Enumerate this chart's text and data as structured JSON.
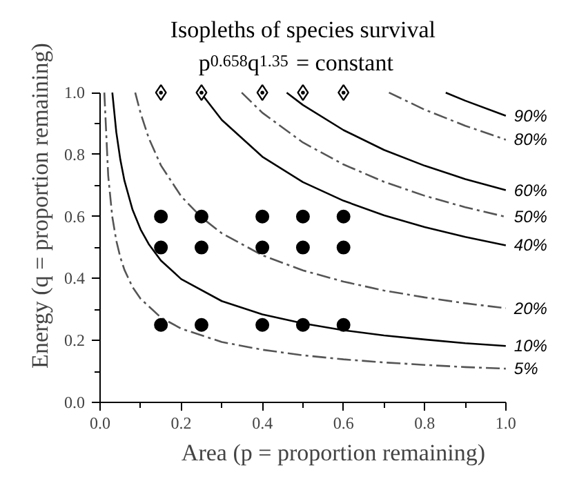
{
  "chart_data": {
    "type": "line",
    "title": "Isopleths of species survival",
    "subtitle": "p$^{0.658}$q$^{1.35}$ = constant",
    "xlabel": "Area (p = proportion remaining)",
    "ylabel": "Energy (q = proportion remaining)",
    "xlim": [
      0,
      1
    ],
    "ylim": [
      0,
      1
    ],
    "xticks": [
      {
        "value": 0,
        "label": "0.0"
      },
      {
        "value": 0.2,
        "label": "0.2"
      },
      {
        "value": 0.4,
        "label": "0.4"
      },
      {
        "value": 0.6,
        "label": "0.6"
      },
      {
        "value": 0.8,
        "label": "0.8"
      },
      {
        "value": 1,
        "label": "1.0"
      }
    ],
    "yticks": [
      {
        "value": 0,
        "label": "0.0"
      },
      {
        "value": 0.2,
        "label": "0.2"
      },
      {
        "value": 0.4,
        "label": "0.4"
      },
      {
        "value": 0.6,
        "label": "0.6"
      },
      {
        "value": 0.8,
        "label": "0.8"
      },
      {
        "value": 1,
        "label": "1.0"
      }
    ],
    "grid": false,
    "series": [
      {
        "name": "90%",
        "color": "#000000",
        "line_style": "solid",
        "x": [
          0.852,
          0.9,
          1.0
        ],
        "values": [
          1.0,
          0.974,
          0.925
        ]
      },
      {
        "name": "80%",
        "color": "#555555",
        "line_style": "dashed",
        "x": [
          0.712,
          0.8,
          0.9,
          1.0
        ],
        "values": [
          1.0,
          0.945,
          0.893,
          0.848
        ]
      },
      {
        "name": "60%",
        "color": "#000000",
        "line_style": "solid",
        "x": [
          0.46,
          0.5,
          0.6,
          0.7,
          0.8,
          0.9,
          1.0
        ],
        "values": [
          1.0,
          0.96,
          0.879,
          0.815,
          0.764,
          0.721,
          0.685
        ]
      },
      {
        "name": "50%",
        "color": "#555555",
        "line_style": "dashed",
        "x": [
          0.349,
          0.4,
          0.5,
          0.6,
          0.7,
          0.8,
          0.9,
          1.0
        ],
        "values": [
          1.0,
          0.935,
          0.839,
          0.768,
          0.712,
          0.667,
          0.63,
          0.599
        ]
      },
      {
        "name": "40%",
        "color": "#000000",
        "line_style": "solid",
        "x": [
          0.248,
          0.3,
          0.4,
          0.5,
          0.6,
          0.7,
          0.8,
          0.9,
          1.0
        ],
        "values": [
          1.0,
          0.912,
          0.793,
          0.711,
          0.651,
          0.604,
          0.566,
          0.534,
          0.507
        ]
      },
      {
        "name": "20%",
        "color": "#555555",
        "line_style": "dashed",
        "x": [
          0.0866,
          0.1,
          0.12,
          0.15,
          0.2,
          0.25,
          0.3,
          0.4,
          0.5,
          0.6,
          0.7,
          0.8,
          0.9,
          1.0
        ],
        "values": [
          1.0,
          0.933,
          0.853,
          0.765,
          0.665,
          0.597,
          0.546,
          0.475,
          0.426,
          0.39,
          0.361,
          0.339,
          0.32,
          0.304
        ]
      },
      {
        "name": "10%",
        "color": "#000000",
        "line_style": "solid",
        "x": [
          0.0302,
          0.04,
          0.05,
          0.06,
          0.08,
          0.1,
          0.12,
          0.15,
          0.2,
          0.3,
          0.4,
          0.5,
          0.6,
          0.7,
          0.8,
          0.9,
          1.0
        ],
        "values": [
          1.0,
          0.872,
          0.783,
          0.716,
          0.622,
          0.558,
          0.511,
          0.458,
          0.398,
          0.327,
          0.284,
          0.255,
          0.233,
          0.216,
          0.203,
          0.191,
          0.182
        ]
      },
      {
        "name": "5%",
        "color": "#555555",
        "line_style": "dashed",
        "x": [
          0.0105,
          0.02,
          0.03,
          0.04,
          0.05,
          0.06,
          0.08,
          0.1,
          0.15,
          0.2,
          0.3,
          0.4,
          0.5,
          0.6,
          0.7,
          0.8,
          0.9,
          1.0
        ],
        "values": [
          1.0,
          0.732,
          0.6,
          0.522,
          0.468,
          0.428,
          0.372,
          0.334,
          0.274,
          0.238,
          0.195,
          0.17,
          0.152,
          0.139,
          0.129,
          0.121,
          0.114,
          0.109
        ]
      },
      {
        "type": "scatter",
        "marker": "circle",
        "color": "#000000",
        "x": [
          0.15,
          0.25,
          0.4,
          0.5,
          0.6,
          0.15,
          0.25,
          0.4,
          0.5,
          0.6,
          0.15,
          0.25,
          0.4,
          0.5,
          0.6
        ],
        "values": [
          0.6,
          0.6,
          0.6,
          0.6,
          0.6,
          0.5,
          0.5,
          0.5,
          0.5,
          0.5,
          0.25,
          0.25,
          0.25,
          0.25,
          0.25
        ]
      },
      {
        "type": "scatter",
        "marker": "diamond",
        "color": "#000000",
        "x": [
          0.15,
          0.25,
          0.4,
          0.5,
          0.6
        ],
        "values": [
          1.0,
          1.0,
          1.0,
          1.0,
          1.0
        ]
      }
    ]
  }
}
